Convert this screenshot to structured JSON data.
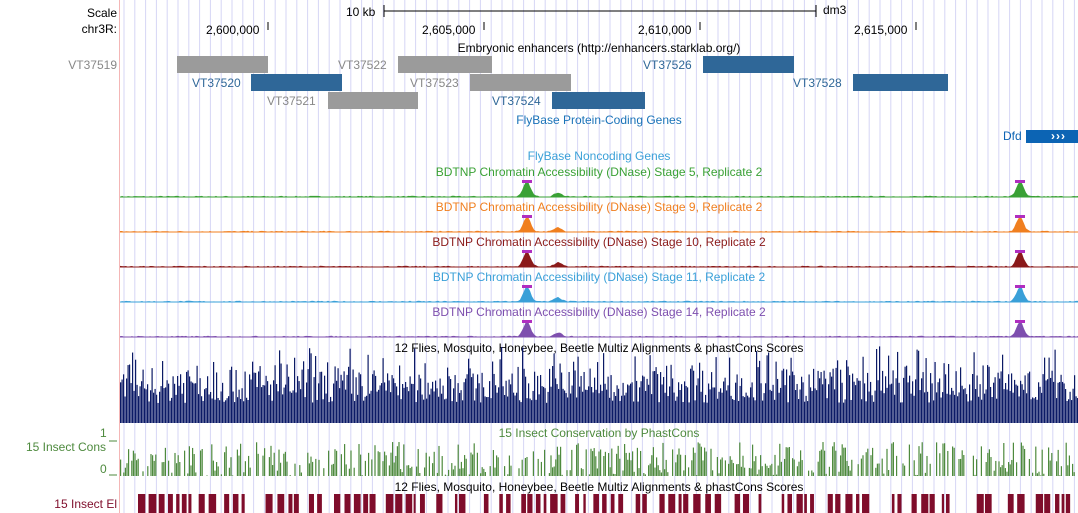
{
  "ruler": {
    "scale_label": "Scale",
    "chrom_label": "chr3R:",
    "scale_bar_label": "10 kb",
    "assembly": "dm3",
    "positions": [
      "2,600,000",
      "2,605,000",
      "2,610,000",
      "2,615,000"
    ]
  },
  "enhancers": {
    "track_title": "Embryonic enhancers (http://enhancers.starklab.org/)",
    "items": [
      {
        "name": "VT37519",
        "color": "#888888"
      },
      {
        "name": "VT37520",
        "color": "#2f6798"
      },
      {
        "name": "VT37521",
        "color": "#888888"
      },
      {
        "name": "VT37522",
        "color": "#888888"
      },
      {
        "name": "VT37523",
        "color": "#888888"
      },
      {
        "name": "VT37524",
        "color": "#2f6798"
      },
      {
        "name": "VT37526",
        "color": "#2f6798"
      },
      {
        "name": "VT37528",
        "color": "#2f6798"
      }
    ]
  },
  "genes": {
    "coding_title": "FlyBase Protein-Coding Genes",
    "coding_gene": "Dfd",
    "coding_strand_glyph": "›››",
    "noncoding_title": "FlyBase Noncoding Genes"
  },
  "dnase_tracks": [
    {
      "title": "BDTNP Chromatin Accessibility (DNase) Stage 5, Replicate 2",
      "color": "#3aa135"
    },
    {
      "title": "BDTNP Chromatin Accessibility (DNase) Stage 9, Replicate 2",
      "color": "#f07f1f"
    },
    {
      "title": "BDTNP Chromatin Accessibility (DNase) Stage 10, Replicate 2",
      "color": "#8b1a1a"
    },
    {
      "title": "BDTNP Chromatin Accessibility (DNase) Stage 11, Replicate 2",
      "color": "#3aa0d8"
    },
    {
      "title": "BDTNP Chromatin Accessibility (DNase) Stage 14, Replicate 2",
      "color": "#7e4fae"
    }
  ],
  "multiz": {
    "title": "12 Flies, Mosquito, Honeybee, Beetle Multiz Alignments & phastCons Scores",
    "color": "#0b1a66"
  },
  "cons15": {
    "side_label": "15 Insect Cons",
    "title": "15 Insect Conservation by PhastCons",
    "axis_max": "1",
    "axis_min": "0",
    "color": "#4e8a3e"
  },
  "elements15": {
    "side_label": "15 Insect El",
    "title": "12 Flies, Mosquito, Honeybee, Beetle Multiz Alignments & phastCons Scores",
    "color": "#7f0d2b"
  },
  "colors": {
    "gridline": "#d6d6f5",
    "side_divider": "#f4b6b6",
    "gene_blue": "#0c64b4",
    "title_blue": "#1a73b8"
  }
}
